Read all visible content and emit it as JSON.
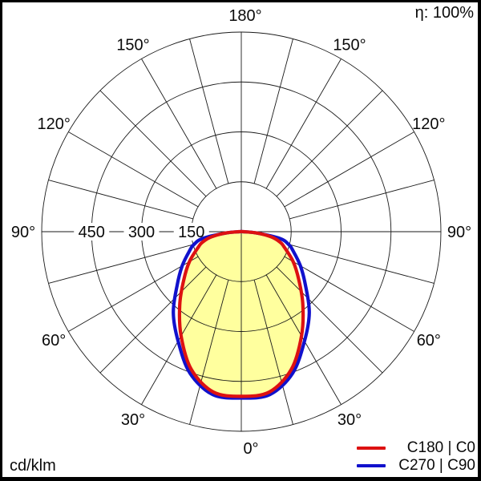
{
  "header": {
    "efficiency": "η: 100%"
  },
  "footer": {
    "unit": "cd/klm"
  },
  "legend": {
    "items": [
      {
        "label": "C180 | C0",
        "color": "#dd1111"
      },
      {
        "label": "C270 | C90",
        "color": "#1111cc"
      }
    ]
  },
  "chart_data": {
    "type": "polar",
    "subtype": "luminous-intensity-distribution",
    "units": "cd/klm",
    "efficiency_text": "η: 100%",
    "angle_tick_labels": [
      "0°",
      "30°",
      "60°",
      "90°",
      "120°",
      "150°",
      "180°"
    ],
    "angle_tick_values_deg": [
      0,
      30,
      60,
      90,
      120,
      150,
      180
    ],
    "angle_grid_step_deg": 15,
    "radial_tick_values": [
      150,
      300,
      450
    ],
    "radial_tick_labels": [
      "150",
      "300",
      "450"
    ],
    "radial_max": 600,
    "grid_color": "#1a1a1a",
    "beam_fill_color": "#ffff9e",
    "legend_position": "bottom-right",
    "series": [
      {
        "name": "C180 | C0",
        "color": "#dd1111",
        "filled": true,
        "symmetric": true,
        "gamma_deg": [
          0,
          10,
          20,
          30,
          40,
          50,
          60,
          70,
          75,
          80,
          85,
          90
        ],
        "cd_per_klm": [
          495,
          489,
          440,
          362,
          288,
          226,
          180,
          138,
          120,
          92,
          48,
          8
        ]
      },
      {
        "name": "C270 | C90",
        "color": "#1111cc",
        "filled": false,
        "symmetric": true,
        "gamma_deg": [
          0,
          10,
          20,
          30,
          40,
          50,
          60,
          70,
          75,
          80,
          85,
          90
        ],
        "cd_per_klm": [
          500,
          497,
          452,
          380,
          318,
          252,
          205,
          165,
          147,
          118,
          45,
          4
        ]
      }
    ]
  }
}
